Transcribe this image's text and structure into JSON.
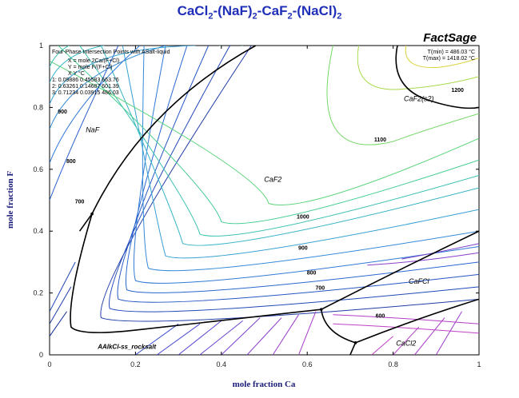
{
  "title": {
    "parts": [
      {
        "text": "CaCl",
        "sub": false
      },
      {
        "text": "2",
        "sub": true
      },
      {
        "text": "-(NaF)",
        "sub": false
      },
      {
        "text": "2",
        "sub": true
      },
      {
        "text": "-CaF",
        "sub": false
      },
      {
        "text": "2",
        "sub": true
      },
      {
        "text": "-(NaCl)",
        "sub": false
      },
      {
        "text": "2",
        "sub": true
      }
    ]
  },
  "brand": "FactSage",
  "info_box": {
    "lines": [
      "Four-Phase Intersection Points with ASalt-liquid",
      "X = mole 2Ca/(F+Cl)",
      "Y = mole F/(F+Cl)",
      "X        Y        °C",
      "1: 0.09886  0.45583   663.76",
      "2: 0.63261  0.14687   601.39",
      "3: 0.71234  0.03915   486.03"
    ]
  },
  "t_range": {
    "tmin": "T(min) = 486.03 °C",
    "tmax": "T(max) = 1418.02 °C"
  },
  "chart_data": {
    "type": "ternary-projection contour (liquidus)",
    "title": "CaCl2-(NaF)2-CaF2-(NaCl)2",
    "xlabel": "mole fraction Ca",
    "ylabel": "mole fraction F",
    "xlim": [
      0,
      1
    ],
    "ylim": [
      0,
      1
    ],
    "x_ticks": [
      "0",
      "0.2",
      "0.4",
      "0.6",
      "0.8",
      "1"
    ],
    "y_ticks": [
      "0",
      "0.2",
      "0.4",
      "0.6",
      "0.8",
      "1"
    ],
    "isotherm_labels": [
      {
        "label": "600",
        "x": 0.77,
        "y": 0.12
      },
      {
        "label": "700",
        "x": 0.63,
        "y": 0.21
      },
      {
        "label": "800",
        "x": 0.61,
        "y": 0.26
      },
      {
        "label": "900",
        "x": 0.59,
        "y": 0.34
      },
      {
        "label": "1000",
        "x": 0.59,
        "y": 0.44
      },
      {
        "label": "1100",
        "x": 0.77,
        "y": 0.69
      },
      {
        "label": "1200",
        "x": 0.95,
        "y": 0.85
      },
      {
        "label": "900",
        "x": 0.03,
        "y": 0.78
      },
      {
        "label": "800",
        "x": 0.05,
        "y": 0.62
      },
      {
        "label": "700",
        "x": 0.07,
        "y": 0.49
      }
    ],
    "regions": [
      {
        "label": "NaF",
        "x": 0.1,
        "y": 0.72
      },
      {
        "label": "CaF2",
        "x": 0.52,
        "y": 0.56
      },
      {
        "label": "CaF2(s2)",
        "x": 0.86,
        "y": 0.82
      },
      {
        "label": "CaFCl",
        "x": 0.86,
        "y": 0.23
      },
      {
        "label": "CaCl2",
        "x": 0.83,
        "y": 0.03
      },
      {
        "label": "AAlkCl-ss_rocksalt",
        "x": 0.18,
        "y": 0.02
      }
    ],
    "invariant_points": [
      {
        "x": 0.09886,
        "y": 0.45583,
        "t": 663.76
      },
      {
        "x": 0.63261,
        "y": 0.14687,
        "t": 601.39
      },
      {
        "x": 0.71234,
        "y": 0.03915,
        "t": 486.03
      }
    ],
    "grid": false,
    "legend": "info box top-left"
  }
}
